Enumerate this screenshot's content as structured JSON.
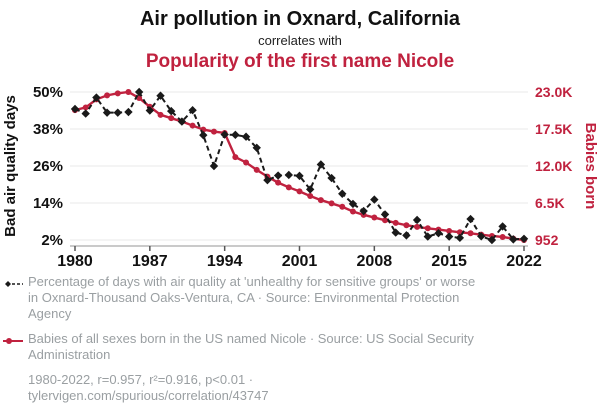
{
  "header": {
    "title": "Air pollution in Oxnard, California",
    "connector": "correlates with",
    "subtitle": "Popularity of the first name Nicole"
  },
  "chart_data": {
    "type": "line",
    "title": "Air pollution in Oxnard, California correlates with Popularity of the first name Nicole",
    "x_label_ticks": [
      1980,
      1987,
      1994,
      2001,
      2008,
      2015,
      2022
    ],
    "x": [
      1980,
      1981,
      1982,
      1983,
      1984,
      1985,
      1986,
      1987,
      1988,
      1989,
      1990,
      1991,
      1992,
      1993,
      1994,
      1995,
      1996,
      1997,
      1998,
      1999,
      2000,
      2001,
      2002,
      2003,
      2004,
      2005,
      2006,
      2007,
      2008,
      2009,
      2010,
      2011,
      2012,
      2013,
      2014,
      2015,
      2016,
      2017,
      2018,
      2019,
      2020,
      2021,
      2022
    ],
    "left_axis": {
      "title": "Bad air quality days",
      "range": [
        2,
        50
      ],
      "ticks": [
        {
          "label": "50%",
          "value": 50
        },
        {
          "label": "38%",
          "value": 38
        },
        {
          "label": "26%",
          "value": 26
        },
        {
          "label": "14%",
          "value": 14
        },
        {
          "label": "2%",
          "value": 2
        }
      ]
    },
    "right_axis": {
      "title": "Babies born",
      "range": [
        952,
        23000
      ],
      "ticks": [
        {
          "label": "23.0K",
          "value": 23000
        },
        {
          "label": "17.5K",
          "value": 17500
        },
        {
          "label": "12.0K",
          "value": 12000
        },
        {
          "label": "6.5K",
          "value": 6500
        },
        {
          "label": "952",
          "value": 952
        }
      ]
    },
    "series": [
      {
        "name": "Percentage of days with bad air quality in Oxnard-Thousand Oaks-Ventura, CA",
        "axis": "left",
        "style": "dashed",
        "marker": "diamond",
        "color": "black",
        "values": [
          44.5,
          43,
          48.2,
          43.3,
          43.3,
          43.5,
          50,
          44,
          48.8,
          43.8,
          40.4,
          44.1,
          36,
          26,
          36.2,
          36.1,
          35.5,
          31.9,
          21.4,
          22.9,
          23.1,
          22.8,
          18.4,
          26.5,
          22.1,
          17,
          13.7,
          11.4,
          15.1,
          10.3,
          4.4,
          3.5,
          8.5,
          3.1,
          4.2,
          3.1,
          2.7,
          8.8,
          3.2,
          2,
          6.4,
          2.2,
          2.4
        ]
      },
      {
        "name": "Babies of all sexes born in the US named Nicole",
        "axis": "right",
        "style": "solid",
        "marker": "circle",
        "color": "red",
        "values": [
          20300,
          20700,
          21900,
          22500,
          22800,
          23000,
          22100,
          20800,
          19600,
          19100,
          18600,
          18000,
          17400,
          17100,
          16900,
          13300,
          12500,
          11400,
          10400,
          9500,
          8800,
          8200,
          7500,
          6900,
          6400,
          5900,
          5200,
          4700,
          4300,
          3900,
          3500,
          3150,
          2900,
          2700,
          2500,
          2300,
          2100,
          1950,
          1750,
          1550,
          1400,
          1150,
          952
        ]
      }
    ],
    "grid": "horizontal",
    "legend_position": "bottom"
  },
  "legend": {
    "items": [
      {
        "icon": "black-dashed-diamond-series-icon",
        "label": "Percentage of days with air quality at 'unhealthy for sensitive groups' or worse in Oxnard-Thousand Oaks-Ventura, CA · Source: Environmental Protection Agency"
      },
      {
        "icon": "red-solid-dot-series-icon",
        "label": "Babies of all sexes born in the US named Nicole · Source: US Social Security Administration"
      }
    ]
  },
  "footer": {
    "text": "1980-2022, r=0.957, r²=0.916, p<0.01 · tylervigen.com/spurious/correlation/43747"
  },
  "colors": {
    "red": "#c0223f",
    "black": "#1a1a1a",
    "grid": "#e8e8e8",
    "axis_line": "#b8b8b8",
    "tick_mark": "#555555",
    "legend_text": "#9a9fa2",
    "title_text": "#111111"
  }
}
